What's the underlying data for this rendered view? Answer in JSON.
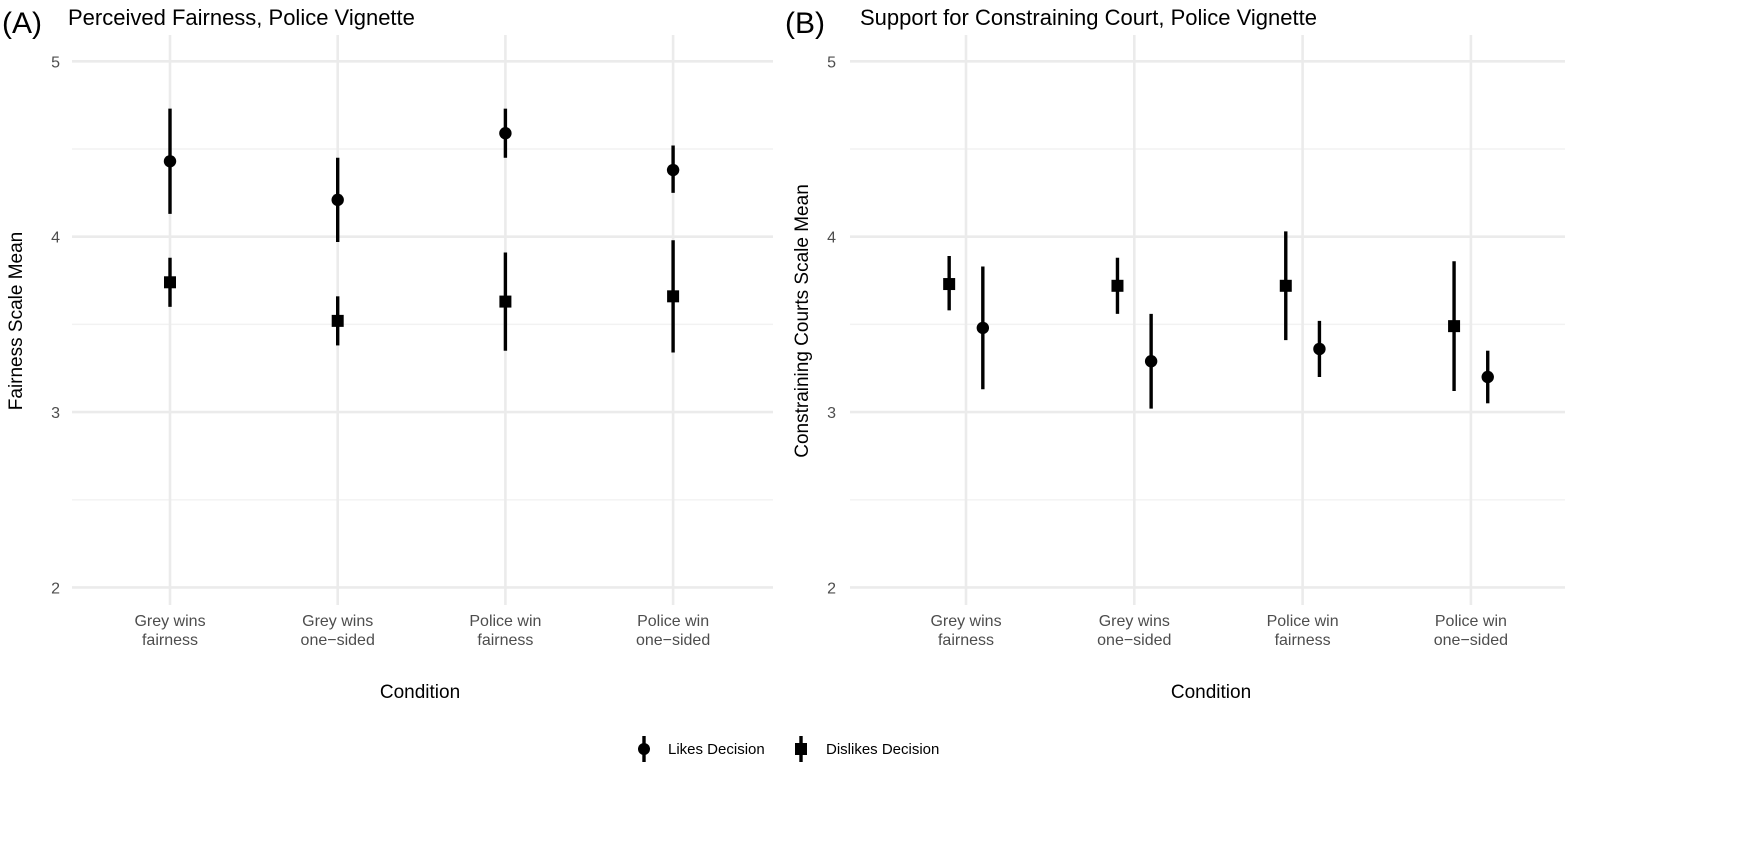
{
  "chart_data": [
    {
      "type": "scatter",
      "panel_label": "(A)",
      "title": "Perceived Fairness, Police Vignette",
      "xlabel": "Condition",
      "ylabel": "Fairness Scale Mean",
      "ylim": [
        1.9,
        5.15
      ],
      "y_ticks": [
        "2",
        "3",
        "4",
        "5"
      ],
      "categories": [
        [
          "Grey wins",
          "fairness"
        ],
        [
          "Grey wins",
          "one−sided"
        ],
        [
          "Police win",
          "fairness"
        ],
        [
          "Police win",
          "one−sided"
        ]
      ],
      "dodge": 0,
      "series": [
        {
          "name": "Likes Decision",
          "shape": "circle",
          "values": [
            4.43,
            4.21,
            4.59,
            4.38
          ],
          "lower": [
            4.13,
            3.97,
            4.45,
            4.25
          ],
          "upper": [
            4.73,
            4.45,
            4.73,
            4.52
          ]
        },
        {
          "name": "Dislikes Decision",
          "shape": "square",
          "values": [
            3.74,
            3.52,
            3.63,
            3.66
          ],
          "lower": [
            3.6,
            3.38,
            3.35,
            3.34
          ],
          "upper": [
            3.88,
            3.66,
            3.91,
            3.98
          ]
        }
      ]
    },
    {
      "type": "scatter",
      "panel_label": "(B)",
      "title": "Support for Constraining Court, Police Vignette",
      "xlabel": "Condition",
      "ylabel": "Constraining Courts Scale Mean",
      "ylim": [
        1.9,
        5.15
      ],
      "y_ticks": [
        "2",
        "3",
        "4",
        "5"
      ],
      "categories": [
        [
          "Grey wins",
          "fairness"
        ],
        [
          "Grey wins",
          "one−sided"
        ],
        [
          "Police win",
          "fairness"
        ],
        [
          "Police win",
          "one−sided"
        ]
      ],
      "dodge": 0.1,
      "series": [
        {
          "name": "Likes Decision",
          "shape": "circle",
          "values": [
            3.48,
            3.29,
            3.36,
            3.2
          ],
          "lower": [
            3.13,
            3.02,
            3.2,
            3.05
          ],
          "upper": [
            3.83,
            3.56,
            3.52,
            3.35
          ]
        },
        {
          "name": "Dislikes Decision",
          "shape": "square",
          "values": [
            3.73,
            3.72,
            3.72,
            3.49
          ],
          "lower": [
            3.58,
            3.56,
            3.41,
            3.12
          ],
          "upper": [
            3.89,
            3.88,
            4.03,
            3.86
          ]
        }
      ]
    }
  ],
  "legend": {
    "position": "bottom",
    "items": [
      {
        "label": "Likes Decision",
        "shape": "circle"
      },
      {
        "label": "Dislikes Decision",
        "shape": "square"
      }
    ]
  }
}
